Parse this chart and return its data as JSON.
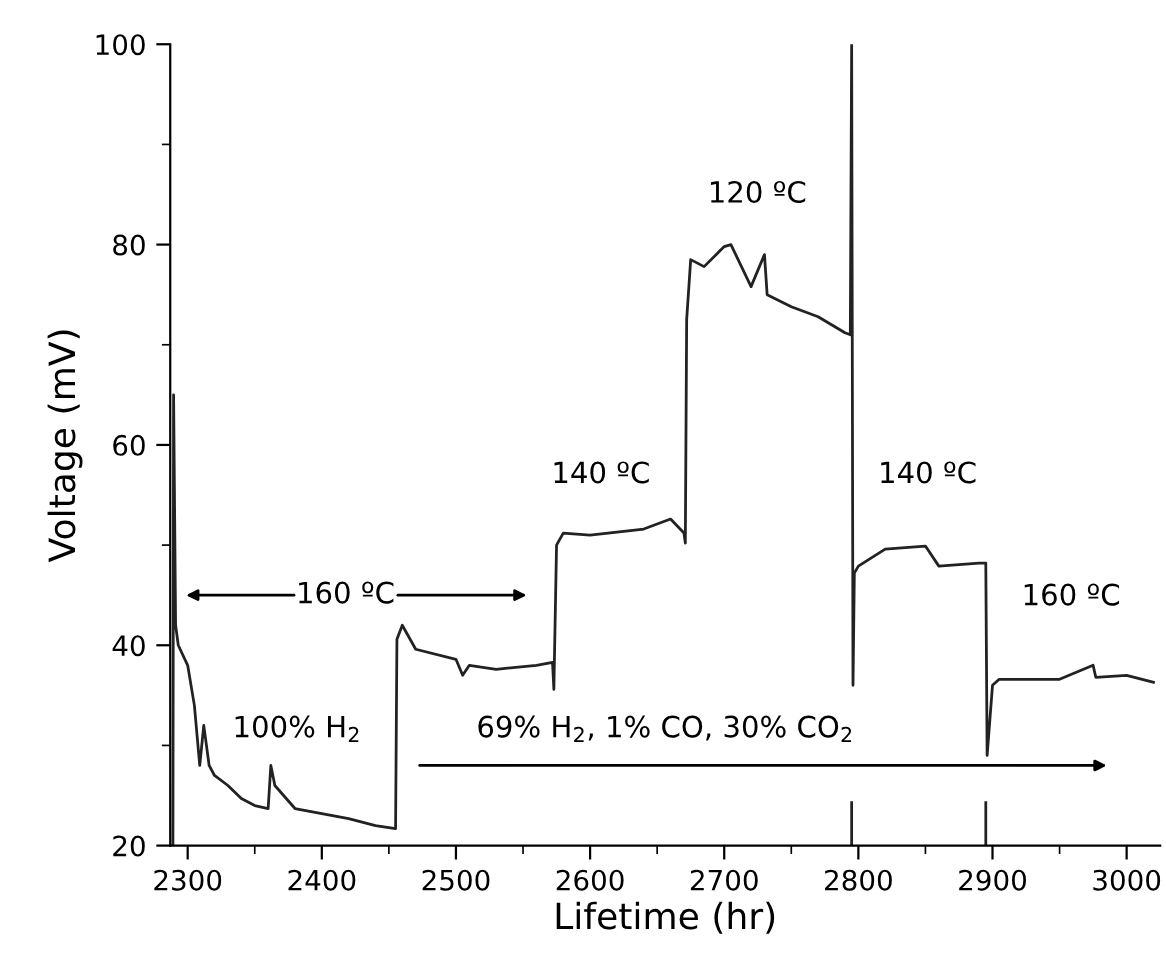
{
  "chart_data": {
    "type": "line",
    "xlabel": "Lifetime (hr)",
    "ylabel": "Voltage (mV)",
    "xlim": [
      2287,
      3025
    ],
    "ylim": [
      20,
      100
    ],
    "xticks": [
      2300,
      2400,
      2500,
      2600,
      2700,
      2800,
      2900,
      3000
    ],
    "yticks": [
      20,
      40,
      60,
      80,
      100
    ],
    "grid": false,
    "legend": false,
    "marker": "none",
    "line_style": "solid",
    "series": [
      {
        "color": "#222222",
        "x": [
          2289,
          2289.5,
          2291,
          2293,
          2300,
          2305,
          2309,
          2312,
          2316,
          2320,
          2330,
          2340,
          2350,
          2360,
          2362,
          2365,
          2380,
          2400,
          2420,
          2440,
          2455,
          2456,
          2460,
          2470,
          2500,
          2505,
          2510,
          2530,
          2560,
          2572,
          2573,
          2575,
          2580,
          2600,
          2640,
          2660,
          2670,
          2671,
          2672,
          2675,
          2685,
          2700,
          2705,
          2720,
          2730,
          2732,
          2750,
          2770,
          2790,
          2794,
          2795,
          2796,
          2797,
          2800,
          2820,
          2850,
          2860,
          2890,
          2895,
          2896,
          2900,
          2905,
          2950,
          2975,
          2977,
          3000,
          3020
        ],
        "values": [
          20,
          65,
          42,
          40,
          38,
          34,
          28,
          32,
          28,
          27,
          26,
          24.7,
          24,
          23.7,
          28,
          26,
          23.7,
          23.2,
          22.7,
          22,
          21.7,
          40.6,
          42,
          39.6,
          38.6,
          37,
          38,
          37.6,
          38,
          38.3,
          35.6,
          50,
          51.2,
          51,
          51.6,
          52.6,
          51.2,
          50.2,
          72.5,
          78.5,
          77.8,
          79.8,
          80,
          75.8,
          79,
          75,
          73.8,
          72.8,
          71.2,
          71,
          100,
          36,
          47.2,
          47.9,
          49.6,
          49.9,
          47.9,
          48.2,
          48.2,
          29,
          36,
          36.6,
          36.6,
          38,
          36.8,
          37,
          36.3
        ]
      },
      {
        "color": "#222222",
        "x": [
          2795,
          2795,
          null,
          2895,
          2895
        ],
        "values": [
          20,
          24.3,
          null,
          20,
          24.3
        ]
      }
    ],
    "annotations": [
      "160 ºC",
      "100% H$_{2}$",
      "69% H$_{2}$, 1% CO, 30% CO$_{2}$",
      "140 ºC",
      "120 ºC",
      "140 ºC",
      "160 ºC"
    ]
  }
}
